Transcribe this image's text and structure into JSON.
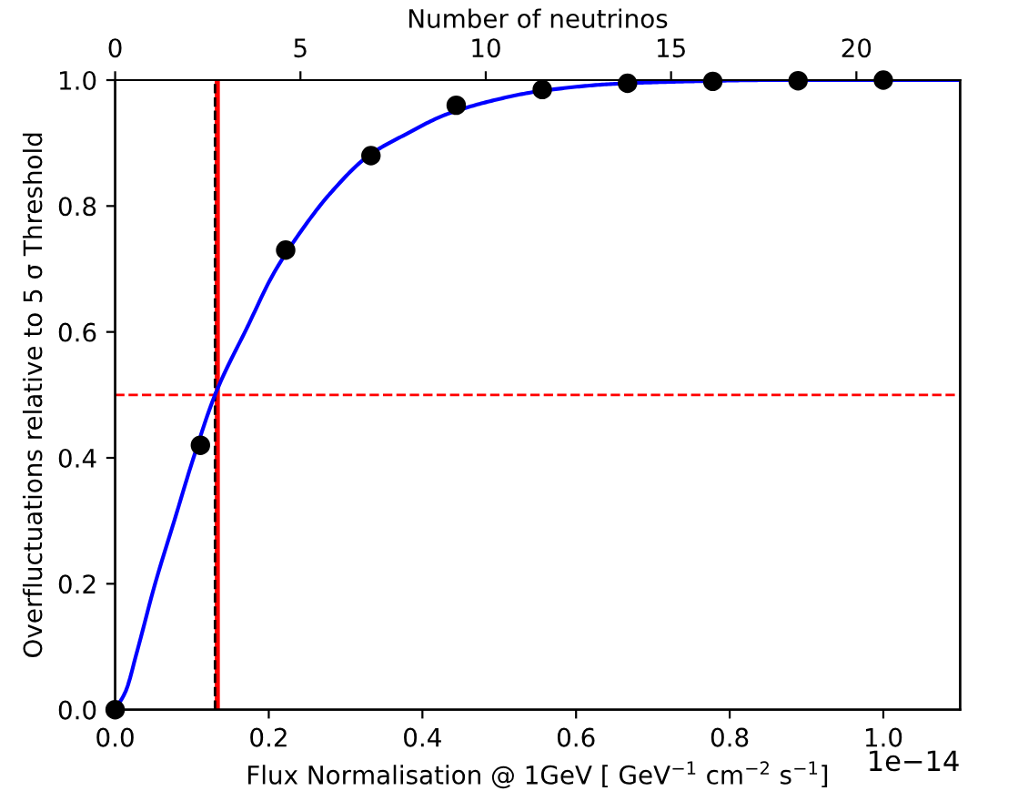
{
  "chart_data": {
    "type": "scatter",
    "xlabel": "Flux Normalisation @ 1GeV [ GeV$^{−1}$ cm$^{−2}$ s$^{−1}$]",
    "ylabel": "Overfluctuations relative to 5 σ Threshold",
    "x2label": "Number of neutrinos",
    "annotations": [
      "1e−14"
    ],
    "series": [
      {
        "type": "line",
        "marker": "none",
        "color": "#0000ff",
        "x": [
          0,
          0.014,
          0.028,
          0.052,
          0.077,
          0.102,
          0.13,
          0.173,
          0.205,
          0.242,
          0.28,
          0.33,
          0.38,
          0.43,
          0.5,
          0.55,
          0.65,
          0.75,
          0.85,
          1.1
        ],
        "values": [
          0,
          0.03,
          0.09,
          0.2,
          0.3,
          0.4,
          0.5,
          0.61,
          0.69,
          0.76,
          0.82,
          0.88,
          0.915,
          0.945,
          0.97,
          0.982,
          0.994,
          0.998,
          1.0,
          1.0
        ]
      },
      {
        "marker": "circle",
        "color": "#000000",
        "x": [
          0,
          0.111,
          0.222,
          0.333,
          0.444,
          0.556,
          0.667,
          0.778,
          0.889,
          1.0
        ],
        "values": [
          0,
          0.42,
          0.73,
          0.88,
          0.96,
          0.985,
          0.995,
          0.998,
          0.999,
          1.0
        ]
      }
    ],
    "xlim": [
      0,
      1.1
    ],
    "xticks": [
      {
        "value": 0,
        "label": "0.0"
      },
      {
        "value": 0.2,
        "label": "0.2"
      },
      {
        "value": 0.4,
        "label": "0.4"
      },
      {
        "value": 0.6,
        "label": "0.6"
      },
      {
        "value": 0.8,
        "label": "0.8"
      },
      {
        "value": 1.0,
        "label": "1.0"
      }
    ],
    "ylim": [
      0,
      1
    ],
    "yticks": [
      {
        "value": 0,
        "label": "0.0"
      },
      {
        "value": 0.2,
        "label": "0.2"
      },
      {
        "value": 0.4,
        "label": "0.4"
      },
      {
        "value": 0.6,
        "label": "0.6"
      },
      {
        "value": 0.8,
        "label": "0.8"
      },
      {
        "value": 1.0,
        "label": "1.0"
      }
    ],
    "x2lim": [
      0,
      22.8
    ],
    "x2ticks": [
      0,
      5,
      10,
      15,
      20
    ],
    "ref_lines": [
      {
        "axis": "y",
        "value": 0.5,
        "color": "#ff0000",
        "line_style": "dashed"
      },
      {
        "axis": "x",
        "value": 0.133,
        "color": "#ff0000",
        "line_style": "solid"
      },
      {
        "axis": "x",
        "value": 0.13,
        "color": "#000000",
        "line_style": "dashed"
      }
    ],
    "grid": false,
    "legend": false
  }
}
